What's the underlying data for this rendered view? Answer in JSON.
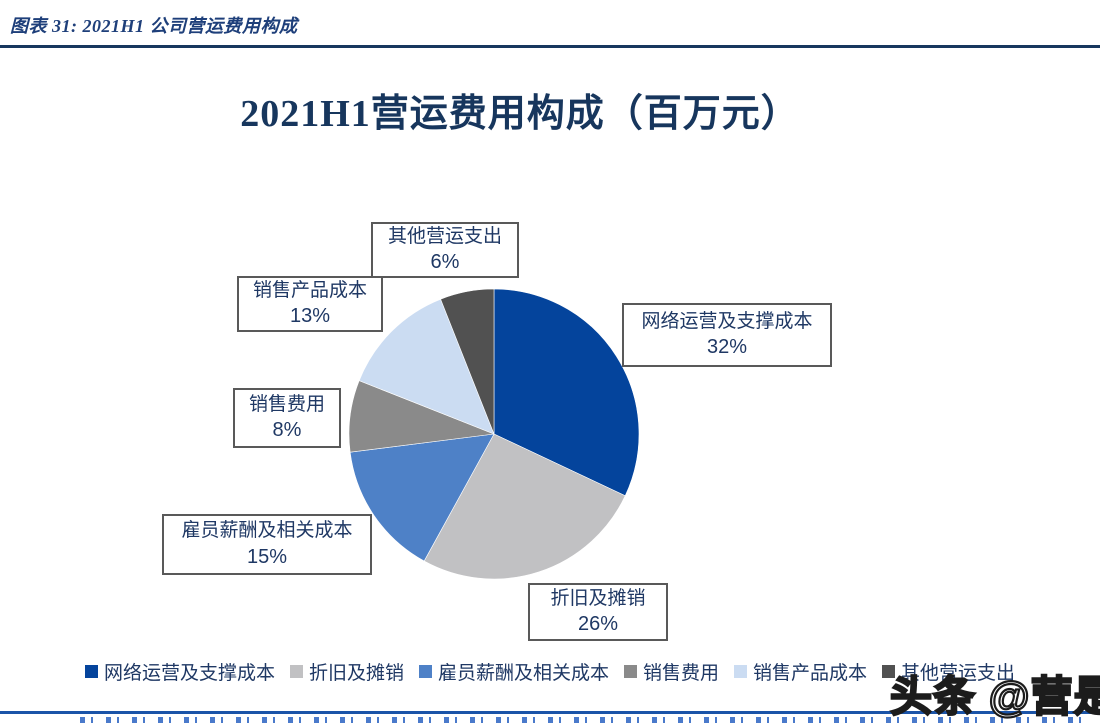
{
  "page": {
    "header": {
      "caption": "图表 31:  2021H1 公司营运费用构成"
    },
    "watermark": "头条 @营是"
  },
  "chart_data": {
    "type": "pie",
    "title": "2021H1营运费用构成（百万元）",
    "unit": "百万元",
    "labels": [
      "网络运营及支撑成本",
      "折旧及摊销",
      "雇员薪酬及相关成本",
      "销售费用",
      "销售产品成本",
      "其他营运支出"
    ],
    "values": [
      32,
      26,
      15,
      8,
      13,
      6
    ],
    "value_labels": [
      "32%",
      "26%",
      "15%",
      "8%",
      "13%",
      "6%"
    ],
    "colors": [
      "#04449c",
      "#c1c1c3",
      "#4e81c7",
      "#8a8a8a",
      "#cbdcf2",
      "#515151"
    ],
    "start_angle_deg": -90,
    "direction": "clockwise",
    "legend_position": "bottom",
    "data_labels": "category name + percent in boxed callouts"
  }
}
